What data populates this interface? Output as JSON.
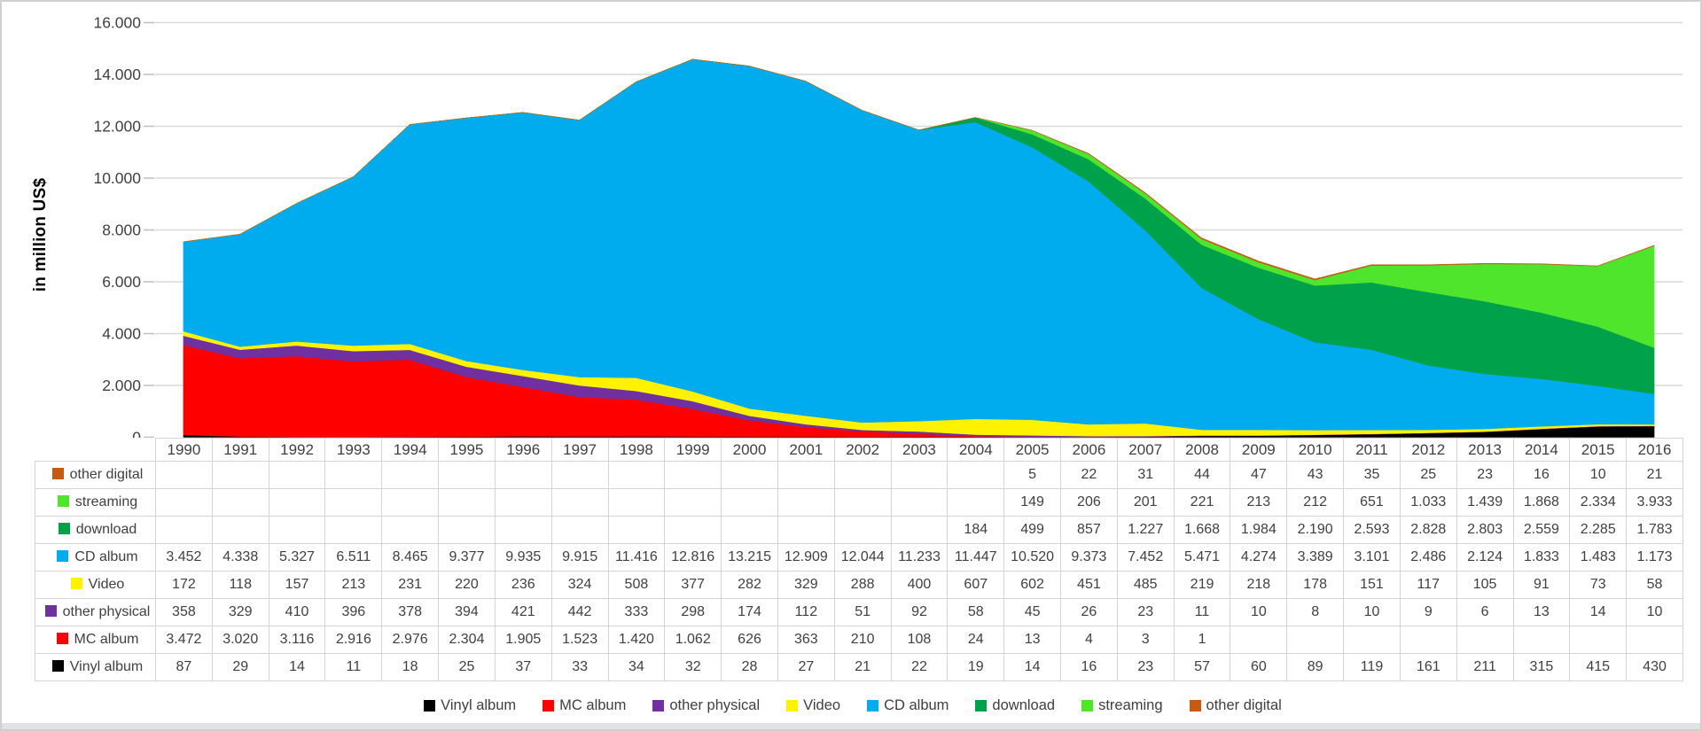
{
  "chart_data": {
    "type": "area",
    "stacked": true,
    "title": "",
    "xlabel": "",
    "ylabel": "in million US$",
    "ylim": [
      0,
      16000
    ],
    "grid": true,
    "legend_position": "bottom",
    "x": [
      1990,
      1991,
      1992,
      1993,
      1994,
      1995,
      1996,
      1997,
      1998,
      1999,
      2000,
      2001,
      2002,
      2003,
      2004,
      2005,
      2006,
      2007,
      2008,
      2009,
      2010,
      2011,
      2012,
      2013,
      2014,
      2015,
      2016
    ],
    "y_tick_values": [
      0,
      2000,
      4000,
      6000,
      8000,
      10000,
      12000,
      14000,
      16000
    ],
    "y_tick_labels": [
      "0",
      "2.000",
      "4.000",
      "6.000",
      "8.000",
      "10.000",
      "12.000",
      "14.000",
      "16.000"
    ],
    "series": [
      {
        "name": "Vinyl album",
        "color": "#000000",
        "values": [
          87,
          29,
          14,
          11,
          18,
          25,
          37,
          33,
          34,
          32,
          28,
          27,
          21,
          22,
          19,
          14,
          16,
          23,
          57,
          60,
          89,
          119,
          161,
          211,
          315,
          415,
          430
        ]
      },
      {
        "name": "MC album",
        "color": "#fe0000",
        "values": [
          3472,
          3020,
          3116,
          2916,
          2976,
          2304,
          1905,
          1523,
          1420,
          1062,
          626,
          363,
          210,
          108,
          24,
          13,
          4,
          3,
          1,
          null,
          null,
          null,
          null,
          null,
          null,
          null,
          null
        ]
      },
      {
        "name": "other physical",
        "color": "#7030a0",
        "values": [
          358,
          329,
          410,
          396,
          378,
          394,
          421,
          442,
          333,
          298,
          174,
          112,
          51,
          92,
          58,
          45,
          26,
          23,
          11,
          10,
          8,
          10,
          9,
          6,
          13,
          14,
          10
        ]
      },
      {
        "name": "Video",
        "color": "#fff200",
        "values": [
          172,
          118,
          157,
          213,
          231,
          220,
          236,
          324,
          508,
          377,
          282,
          329,
          288,
          400,
          607,
          602,
          451,
          485,
          219,
          218,
          178,
          151,
          117,
          105,
          91,
          73,
          58
        ]
      },
      {
        "name": "CD album",
        "color": "#00acee",
        "values": [
          3452,
          4338,
          5327,
          6511,
          8465,
          9377,
          9935,
          9915,
          11416,
          12816,
          13215,
          12909,
          12044,
          11233,
          11447,
          10520,
          9373,
          7452,
          5471,
          4274,
          3389,
          3101,
          2486,
          2124,
          1833,
          1483,
          1173
        ]
      },
      {
        "name": "download",
        "color": "#00a14b",
        "values": [
          null,
          null,
          null,
          null,
          null,
          null,
          null,
          null,
          null,
          null,
          null,
          null,
          null,
          null,
          184,
          499,
          857,
          1227,
          1668,
          1984,
          2190,
          2593,
          2828,
          2803,
          2559,
          2285,
          1783
        ]
      },
      {
        "name": "streaming",
        "color": "#4fe52c",
        "values": [
          null,
          null,
          null,
          null,
          null,
          null,
          null,
          null,
          null,
          null,
          null,
          null,
          null,
          null,
          null,
          149,
          206,
          201,
          221,
          213,
          212,
          651,
          1033,
          1439,
          1868,
          2334,
          3933
        ]
      },
      {
        "name": "other digital",
        "color": "#c55a11",
        "values": [
          null,
          null,
          null,
          null,
          null,
          null,
          null,
          null,
          null,
          null,
          null,
          null,
          null,
          null,
          null,
          5,
          22,
          31,
          44,
          47,
          43,
          35,
          25,
          23,
          16,
          10,
          21
        ]
      }
    ]
  },
  "table": {
    "years": [
      "1990",
      "1991",
      "1992",
      "1993",
      "1994",
      "1995",
      "1996",
      "1997",
      "1998",
      "1999",
      "2000",
      "2001",
      "2002",
      "2003",
      "2004",
      "2005",
      "2006",
      "2007",
      "2008",
      "2009",
      "2010",
      "2011",
      "2012",
      "2013",
      "2014",
      "2015",
      "2016"
    ],
    "rows": [
      {
        "label": "other digital",
        "color": "#c55a11",
        "values": [
          "",
          "",
          "",
          "",
          "",
          "",
          "",
          "",
          "",
          "",
          "",
          "",
          "",
          "",
          "",
          "5",
          "22",
          "31",
          "44",
          "47",
          "43",
          "35",
          "25",
          "23",
          "16",
          "10",
          "21"
        ]
      },
      {
        "label": "streaming",
        "color": "#4fe52c",
        "values": [
          "",
          "",
          "",
          "",
          "",
          "",
          "",
          "",
          "",
          "",
          "",
          "",
          "",
          "",
          "",
          "149",
          "206",
          "201",
          "221",
          "213",
          "212",
          "651",
          "1.033",
          "1.439",
          "1.868",
          "2.334",
          "3.933"
        ]
      },
      {
        "label": "download",
        "color": "#00a14b",
        "values": [
          "",
          "",
          "",
          "",
          "",
          "",
          "",
          "",
          "",
          "",
          "",
          "",
          "",
          "",
          "184",
          "499",
          "857",
          "1.227",
          "1.668",
          "1.984",
          "2.190",
          "2.593",
          "2.828",
          "2.803",
          "2.559",
          "2.285",
          "1.783"
        ]
      },
      {
        "label": "CD album",
        "color": "#00acee",
        "values": [
          "3.452",
          "4.338",
          "5.327",
          "6.511",
          "8.465",
          "9.377",
          "9.935",
          "9.915",
          "11.416",
          "12.816",
          "13.215",
          "12.909",
          "12.044",
          "11.233",
          "11.447",
          "10.520",
          "9.373",
          "7.452",
          "5.471",
          "4.274",
          "3.389",
          "3.101",
          "2.486",
          "2.124",
          "1.833",
          "1.483",
          "1.173"
        ]
      },
      {
        "label": "Video",
        "color": "#fff200",
        "values": [
          "172",
          "118",
          "157",
          "213",
          "231",
          "220",
          "236",
          "324",
          "508",
          "377",
          "282",
          "329",
          "288",
          "400",
          "607",
          "602",
          "451",
          "485",
          "219",
          "218",
          "178",
          "151",
          "117",
          "105",
          "91",
          "73",
          "58"
        ]
      },
      {
        "label": "other physical",
        "color": "#7030a0",
        "values": [
          "358",
          "329",
          "410",
          "396",
          "378",
          "394",
          "421",
          "442",
          "333",
          "298",
          "174",
          "112",
          "51",
          "92",
          "58",
          "45",
          "26",
          "23",
          "11",
          "10",
          "8",
          "10",
          "9",
          "6",
          "13",
          "14",
          "10"
        ]
      },
      {
        "label": "MC album",
        "color": "#fe0000",
        "values": [
          "3.472",
          "3.020",
          "3.116",
          "2.916",
          "2.976",
          "2.304",
          "1.905",
          "1.523",
          "1.420",
          "1.062",
          "626",
          "363",
          "210",
          "108",
          "24",
          "13",
          "4",
          "3",
          "1",
          "",
          "",
          "",
          "",
          "",
          "",
          "",
          ""
        ]
      },
      {
        "label": "Vinyl album",
        "color": "#000000",
        "values": [
          "87",
          "29",
          "14",
          "11",
          "18",
          "25",
          "37",
          "33",
          "34",
          "32",
          "28",
          "27",
          "21",
          "22",
          "19",
          "14",
          "16",
          "23",
          "57",
          "60",
          "89",
          "119",
          "161",
          "211",
          "315",
          "415",
          "430"
        ]
      }
    ]
  },
  "legend": {
    "items": [
      {
        "label": "Vinyl album",
        "color": "#000000"
      },
      {
        "label": "MC album",
        "color": "#fe0000"
      },
      {
        "label": "other physical",
        "color": "#7030a0"
      },
      {
        "label": "Video",
        "color": "#fff200"
      },
      {
        "label": "CD album",
        "color": "#00acee"
      },
      {
        "label": "download",
        "color": "#00a14b"
      },
      {
        "label": "streaming",
        "color": "#4fe52c"
      },
      {
        "label": "other digital",
        "color": "#c55a11"
      }
    ]
  },
  "style_colors": {
    "gridline": "#d9d9d9",
    "tick": "#bfbfbf",
    "axis_text": "#404040",
    "table_border": "#d6d4d4",
    "frame_border": "#d2d0ce"
  }
}
